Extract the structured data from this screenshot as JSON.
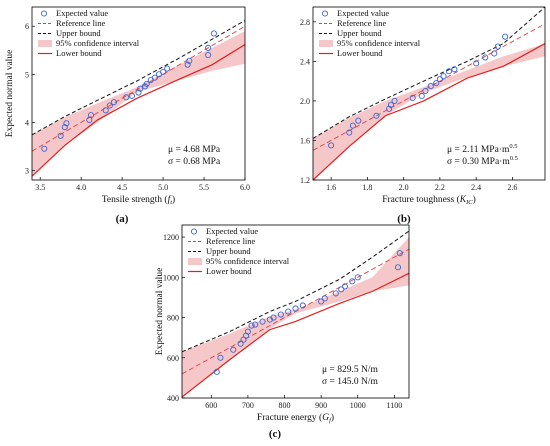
{
  "chart_data": [
    {
      "type": "scatter",
      "panel_label": "(a)",
      "xlabel": "Tensile strength (f_t)",
      "ylabel": "Expected normal value",
      "xlim": [
        3.4,
        6.0
      ],
      "ylim": [
        2.8,
        6.4
      ],
      "xticks": [
        "3.5",
        "4.0",
        "4.5",
        "5.0",
        "5.5",
        "6.0"
      ],
      "yticks": [
        "3",
        "4",
        "5",
        "6"
      ],
      "legend": [
        "Expected value",
        "Reference line",
        "Upper bound",
        "95% confidence interval",
        "Lower bound"
      ],
      "legend_position": "top-left",
      "stats": [
        "μ = 4.68 MPa",
        "σ = 0.68 MPa"
      ],
      "mu": 4.68,
      "sigma": 0.68,
      "points": [
        [
          3.55,
          3.45
        ],
        [
          3.75,
          3.72
        ],
        [
          3.8,
          3.9
        ],
        [
          3.82,
          3.98
        ],
        [
          4.1,
          4.05
        ],
        [
          4.12,
          4.15
        ],
        [
          4.3,
          4.25
        ],
        [
          4.35,
          4.35
        ],
        [
          4.4,
          4.42
        ],
        [
          4.55,
          4.52
        ],
        [
          4.62,
          4.55
        ],
        [
          4.7,
          4.62
        ],
        [
          4.72,
          4.7
        ],
        [
          4.78,
          4.75
        ],
        [
          4.8,
          4.8
        ],
        [
          4.85,
          4.88
        ],
        [
          4.9,
          4.93
        ],
        [
          4.95,
          5.0
        ],
        [
          5.0,
          5.05
        ],
        [
          5.05,
          5.12
        ],
        [
          5.3,
          5.2
        ],
        [
          5.32,
          5.28
        ],
        [
          5.55,
          5.4
        ],
        [
          5.55,
          5.55
        ],
        [
          5.62,
          5.85
        ]
      ],
      "band": [
        [
          3.4,
          3.74,
          2.88
        ],
        [
          3.8,
          4.1,
          3.52
        ],
        [
          4.2,
          4.4,
          4.0
        ],
        [
          4.68,
          4.73,
          4.63
        ],
        [
          5.2,
          5.2,
          4.88
        ],
        [
          5.6,
          5.55,
          5.07
        ],
        [
          6.0,
          5.9,
          5.22
        ]
      ],
      "bound": [
        [
          3.4,
          3.74,
          2.88
        ],
        [
          3.8,
          4.12,
          3.52
        ],
        [
          4.2,
          4.46,
          4.05
        ],
        [
          4.68,
          4.86,
          4.5
        ],
        [
          5.2,
          5.34,
          4.9
        ],
        [
          5.6,
          5.73,
          5.2
        ],
        [
          6.0,
          6.12,
          5.62
        ]
      ]
    },
    {
      "type": "scatter",
      "panel_label": "(b)",
      "xlabel": "Fracture toughness (K_IC)",
      "ylabel": "",
      "xlim": [
        1.5,
        2.78
      ],
      "ylim": [
        1.2,
        2.95
      ],
      "xticks": [
        "1.6",
        "1.8",
        "2.0",
        "2.2",
        "2.4",
        "2.6"
      ],
      "yticks": [
        "1.2",
        "1.6",
        "2.0",
        "2.4",
        "2.8"
      ],
      "legend": [
        "Expected value",
        "Reference line",
        "Upper bound",
        "95% confidence interval",
        "Lower bound"
      ],
      "legend_position": "top-left",
      "stats": [
        "μ = 2.11 MPa·m^0.5",
        "σ = 0.30 MPa·m^0.5"
      ],
      "mu": 2.11,
      "sigma": 0.3,
      "points": [
        [
          1.6,
          1.55
        ],
        [
          1.7,
          1.68
        ],
        [
          1.72,
          1.75
        ],
        [
          1.75,
          1.8
        ],
        [
          1.85,
          1.85
        ],
        [
          1.92,
          1.92
        ],
        [
          1.93,
          1.96
        ],
        [
          1.95,
          2.0
        ],
        [
          2.05,
          2.03
        ],
        [
          2.1,
          2.05
        ],
        [
          2.12,
          2.1
        ],
        [
          2.15,
          2.15
        ],
        [
          2.18,
          2.18
        ],
        [
          2.2,
          2.22
        ],
        [
          2.22,
          2.25
        ],
        [
          2.25,
          2.3
        ],
        [
          2.28,
          2.32
        ],
        [
          2.4,
          2.38
        ],
        [
          2.45,
          2.44
        ],
        [
          2.5,
          2.48
        ],
        [
          2.52,
          2.55
        ],
        [
          2.56,
          2.65
        ]
      ],
      "band": [
        [
          1.5,
          1.62,
          1.2
        ],
        [
          1.7,
          1.83,
          1.54
        ],
        [
          1.9,
          2.0,
          1.85
        ],
        [
          2.11,
          2.14,
          2.08
        ],
        [
          2.35,
          2.31,
          2.24
        ],
        [
          2.55,
          2.45,
          2.35
        ],
        [
          2.78,
          2.58,
          2.45
        ]
      ],
      "bound": [
        [
          1.5,
          1.62,
          1.2
        ],
        [
          1.7,
          1.84,
          1.54
        ],
        [
          1.9,
          2.02,
          1.85
        ],
        [
          2.11,
          2.2,
          2.0
        ],
        [
          2.35,
          2.4,
          2.23
        ],
        [
          2.55,
          2.58,
          2.35
        ],
        [
          2.78,
          2.95,
          2.58
        ]
      ]
    },
    {
      "type": "scatter",
      "panel_label": "(c)",
      "xlabel": "Fracture energy (G_f)",
      "ylabel": "Expected normal value",
      "xlim": [
        520,
        1140
      ],
      "ylim": [
        400,
        1260
      ],
      "xticks": [
        "600",
        "700",
        "800",
        "900",
        "1000",
        "1100"
      ],
      "yticks": [
        "400",
        "600",
        "800",
        "1000",
        "1200"
      ],
      "legend": [
        "Expected value",
        "Reference line",
        "Upper bound",
        "95% confidence interval",
        "Lower bound"
      ],
      "legend_position": "top-left",
      "stats": [
        "μ = 829.5 N/m",
        "σ = 145.0 N/m"
      ],
      "mu": 829.5,
      "sigma": 145.0,
      "points": [
        [
          615,
          530
        ],
        [
          625,
          600
        ],
        [
          660,
          640
        ],
        [
          680,
          670
        ],
        [
          688,
          690
        ],
        [
          695,
          710
        ],
        [
          700,
          730
        ],
        [
          710,
          760
        ],
        [
          720,
          765
        ],
        [
          740,
          780
        ],
        [
          760,
          790
        ],
        [
          770,
          800
        ],
        [
          790,
          815
        ],
        [
          810,
          830
        ],
        [
          830,
          845
        ],
        [
          850,
          860
        ],
        [
          900,
          880
        ],
        [
          910,
          895
        ],
        [
          940,
          920
        ],
        [
          955,
          940
        ],
        [
          965,
          955
        ],
        [
          985,
          980
        ],
        [
          1000,
          1000
        ],
        [
          1110,
          1050
        ],
        [
          1115,
          1120
        ]
      ],
      "band": [
        [
          520,
          630,
          405
        ],
        [
          650,
          720,
          590
        ],
        [
          760,
          805,
          745
        ],
        [
          829.5,
          840,
          820
        ],
        [
          950,
          930,
          880
        ],
        [
          1040,
          1000,
          930
        ],
        [
          1140,
          1200,
          960
        ]
      ],
      "bound": [
        [
          520,
          630,
          405
        ],
        [
          650,
          730,
          590
        ],
        [
          760,
          830,
          740
        ],
        [
          829.5,
          880,
          780
        ],
        [
          950,
          990,
          870
        ],
        [
          1040,
          1100,
          930
        ],
        [
          1140,
          1230,
          1020
        ]
      ]
    }
  ]
}
